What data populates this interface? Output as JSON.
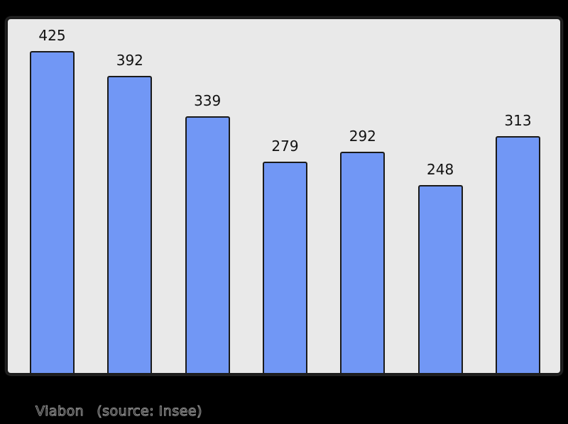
{
  "chart_data": {
    "type": "bar",
    "values": [
      425,
      392,
      339,
      279,
      292,
      248,
      313
    ],
    "data_labels": [
      "425",
      "392",
      "339",
      "279",
      "292",
      "248",
      "313"
    ],
    "title": "",
    "xlabel": "",
    "ylabel": "",
    "ylim": [
      0,
      470
    ],
    "grid": false,
    "legend_position": "none",
    "axes_visible": false,
    "caption_place": "Viabon",
    "caption_source": "(source: Insee)",
    "colors": {
      "page_background": "#000000",
      "plot_background": "#e9e9e9",
      "plot_border": "#1c1c1c",
      "bar_fill": "#7197f5",
      "bar_border": "#1a1a1a",
      "value_label": "#111111",
      "caption_text": "#9a9a9a"
    }
  },
  "footer": {
    "place_label": "Viabon",
    "source_label": "(source: Insee)"
  }
}
